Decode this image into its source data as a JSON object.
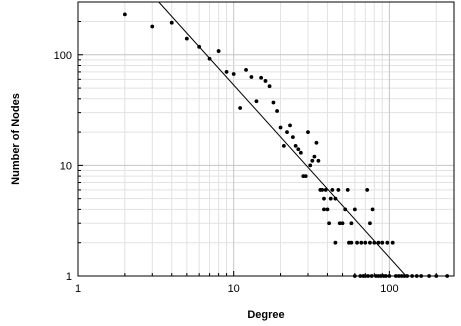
{
  "chart_data": {
    "type": "scatter",
    "title": "",
    "xlabel": "Degree",
    "ylabel": "Number of Nodes",
    "x_scale": "log",
    "y_scale": "log",
    "xlim": [
      1,
      260
    ],
    "ylim": [
      1,
      300
    ],
    "grid": true,
    "x_ticks": [
      {
        "value": 1,
        "label": "1"
      },
      {
        "value": 10,
        "label": "10"
      },
      {
        "value": 100,
        "label": "100"
      }
    ],
    "y_ticks": [
      {
        "value": 1,
        "label": "1"
      },
      {
        "value": 10,
        "label": "10"
      },
      {
        "value": 100,
        "label": "100"
      }
    ],
    "points": [
      [
        2,
        232
      ],
      [
        3,
        180
      ],
      [
        4,
        195
      ],
      [
        5,
        140
      ],
      [
        6,
        118
      ],
      [
        7,
        92
      ],
      [
        8,
        108
      ],
      [
        9,
        70
      ],
      [
        10,
        67
      ],
      [
        11,
        33
      ],
      [
        12,
        73
      ],
      [
        13,
        63
      ],
      [
        14,
        38
      ],
      [
        15,
        62
      ],
      [
        16,
        58
      ],
      [
        17,
        52
      ],
      [
        18,
        37
      ],
      [
        19,
        31
      ],
      [
        20,
        22
      ],
      [
        21,
        15
      ],
      [
        22,
        20
      ],
      [
        23,
        23
      ],
      [
        24,
        18
      ],
      [
        25,
        15
      ],
      [
        26,
        14
      ],
      [
        27,
        13
      ],
      [
        28,
        8
      ],
      [
        29,
        8
      ],
      [
        30,
        20
      ],
      [
        31,
        10
      ],
      [
        32,
        11
      ],
      [
        33,
        12
      ],
      [
        34,
        16
      ],
      [
        35,
        11
      ],
      [
        36,
        6
      ],
      [
        37,
        6
      ],
      [
        38,
        5
      ],
      [
        38,
        4
      ],
      [
        39,
        6
      ],
      [
        40,
        4
      ],
      [
        41,
        3
      ],
      [
        42,
        5
      ],
      [
        43,
        6
      ],
      [
        45,
        2
      ],
      [
        45,
        5
      ],
      [
        47,
        6
      ],
      [
        48,
        3
      ],
      [
        50,
        3
      ],
      [
        52,
        4
      ],
      [
        54,
        6
      ],
      [
        55,
        2
      ],
      [
        57,
        2
      ],
      [
        57,
        3
      ],
      [
        60,
        4
      ],
      [
        60,
        1
      ],
      [
        62,
        2
      ],
      [
        65,
        1
      ],
      [
        66,
        2
      ],
      [
        68,
        1
      ],
      [
        70,
        1
      ],
      [
        70,
        2
      ],
      [
        72,
        6
      ],
      [
        73,
        1
      ],
      [
        75,
        2
      ],
      [
        75,
        3
      ],
      [
        77,
        1
      ],
      [
        78,
        4
      ],
      [
        80,
        2
      ],
      [
        82,
        1
      ],
      [
        85,
        2
      ],
      [
        85,
        1
      ],
      [
        88,
        1
      ],
      [
        90,
        2
      ],
      [
        92,
        1
      ],
      [
        95,
        1
      ],
      [
        97,
        2
      ],
      [
        100,
        1
      ],
      [
        105,
        2
      ],
      [
        110,
        1
      ],
      [
        115,
        1
      ],
      [
        120,
        1
      ],
      [
        125,
        1
      ],
      [
        130,
        1
      ],
      [
        140,
        1
      ],
      [
        150,
        1
      ],
      [
        160,
        1
      ],
      [
        180,
        1
      ],
      [
        200,
        1
      ],
      [
        235,
        1
      ]
    ],
    "fit_line": {
      "from": [
        3.3,
        300
      ],
      "to": [
        128,
        1
      ]
    }
  }
}
